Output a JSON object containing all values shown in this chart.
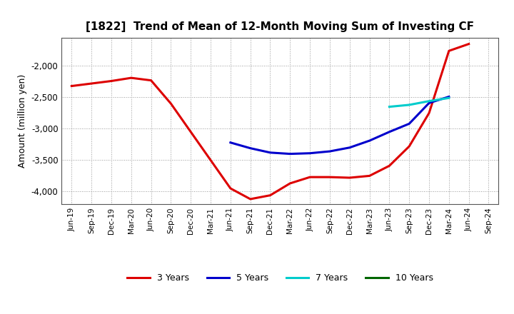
{
  "title": "[1822]  Trend of Mean of 12-Month Moving Sum of Investing CF",
  "ylabel": "Amount (million yen)",
  "background_color": "#ffffff",
  "plot_bg_color": "#ffffff",
  "ylim": [
    -4200,
    -1550
  ],
  "yticks": [
    -4000,
    -3500,
    -3000,
    -2500,
    -2000
  ],
  "grid_color": "#999999",
  "x_labels": [
    "Jun-19",
    "Sep-19",
    "Dec-19",
    "Mar-20",
    "Jun-20",
    "Sep-20",
    "Dec-20",
    "Mar-21",
    "Jun-21",
    "Sep-21",
    "Dec-21",
    "Mar-22",
    "Jun-22",
    "Sep-22",
    "Dec-22",
    "Mar-23",
    "Jun-23",
    "Sep-23",
    "Dec-23",
    "Mar-24",
    "Jun-24",
    "Sep-24"
  ],
  "series_3y": {
    "color": "#dd0000",
    "linewidth": 2.2,
    "label": "3 Years",
    "x": [
      0,
      1,
      2,
      3,
      4,
      5,
      6,
      7,
      8,
      9,
      10,
      11,
      12,
      13,
      14,
      15,
      16,
      17,
      18,
      19,
      20
    ],
    "y": [
      -2320,
      -2280,
      -2240,
      -2190,
      -2230,
      -2600,
      -3050,
      -3500,
      -3950,
      -4120,
      -4060,
      -3870,
      -3770,
      -3770,
      -3780,
      -3750,
      -3590,
      -3280,
      -2750,
      -1760,
      -1650
    ]
  },
  "series_5y": {
    "color": "#0000cc",
    "linewidth": 2.2,
    "label": "5 Years",
    "x": [
      8,
      9,
      10,
      11,
      12,
      13,
      14,
      15,
      16,
      17,
      18,
      19
    ],
    "y": [
      -3220,
      -3310,
      -3380,
      -3400,
      -3390,
      -3360,
      -3300,
      -3190,
      -3050,
      -2920,
      -2590,
      -2490
    ]
  },
  "series_7y": {
    "color": "#00cccc",
    "linewidth": 2.2,
    "label": "7 Years",
    "x": [
      16,
      17,
      18,
      19
    ],
    "y": [
      -2650,
      -2620,
      -2560,
      -2510
    ]
  },
  "series_10y": {
    "color": "#006600",
    "linewidth": 2.2,
    "label": "10 Years",
    "x": [],
    "y": []
  },
  "legend_items": [
    {
      "label": "3 Years",
      "color": "#dd0000"
    },
    {
      "label": "5 Years",
      "color": "#0000cc"
    },
    {
      "label": "7 Years",
      "color": "#00cccc"
    },
    {
      "label": "10 Years",
      "color": "#006600"
    }
  ]
}
